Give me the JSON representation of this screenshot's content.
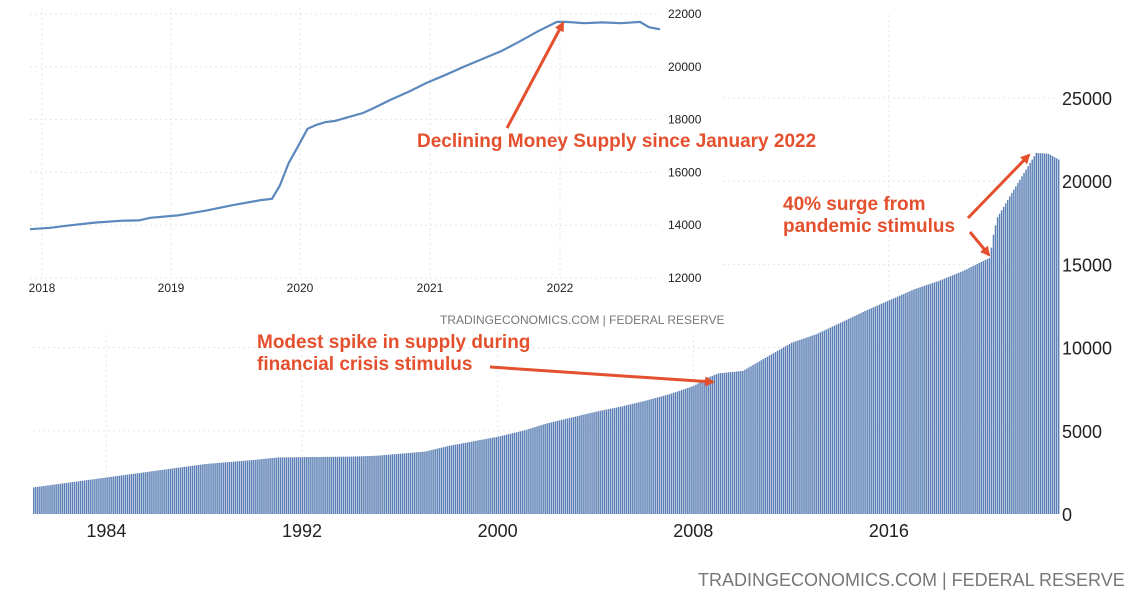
{
  "chart_data": [
    {
      "type": "bar",
      "color": "#5b7fb4",
      "x_start": 1981.0,
      "x_end": 2022.917,
      "step_years": 0.08333,
      "xticks": [
        "1984",
        "1992",
        "2000",
        "2008",
        "2016"
      ],
      "xtick_values": [
        1984,
        1992,
        2000,
        2008,
        2016
      ],
      "yticks": [
        "0",
        "5000",
        "10000",
        "15000",
        "20000",
        "25000"
      ],
      "ylim": [
        0,
        25000
      ],
      "anchors": [
        [
          1981,
          1600
        ],
        [
          1983,
          2000
        ],
        [
          1984,
          2200
        ],
        [
          1986,
          2600
        ],
        [
          1988,
          3000
        ],
        [
          1990,
          3250
        ],
        [
          1991,
          3400
        ],
        [
          1994,
          3450
        ],
        [
          1995,
          3500
        ],
        [
          1997,
          3750
        ],
        [
          1998,
          4100
        ],
        [
          2000,
          4650
        ],
        [
          2001,
          5000
        ],
        [
          2002,
          5450
        ],
        [
          2003,
          5800
        ],
        [
          2004,
          6150
        ],
        [
          2005,
          6450
        ],
        [
          2006,
          6800
        ],
        [
          2007,
          7200
        ],
        [
          2008,
          7700
        ],
        [
          2008.5,
          8150
        ],
        [
          2009,
          8450
        ],
        [
          2010,
          8600
        ],
        [
          2011,
          9450
        ],
        [
          2012,
          10300
        ],
        [
          2013,
          10800
        ],
        [
          2014,
          11500
        ],
        [
          2015,
          12200
        ],
        [
          2016,
          12850
        ],
        [
          2017,
          13500
        ],
        [
          2018,
          14000
        ],
        [
          2019,
          14600
        ],
        [
          2020.1,
          15400
        ],
        [
          2020.25,
          16800
        ],
        [
          2020.4,
          17800
        ],
        [
          2020.6,
          18300
        ],
        [
          2021.0,
          19300
        ],
        [
          2021.5,
          20500
        ],
        [
          2022.0,
          21700
        ],
        [
          2022.5,
          21650
        ],
        [
          2022.917,
          21300
        ]
      ],
      "source": "TRADINGECONOMICS.COM  |  FEDERAL RESERVE"
    },
    {
      "type": "line",
      "color": "#5b88bd",
      "x_start": 2017.917,
      "x_end": 2022.917,
      "xticks": [
        "2018",
        "2019",
        "2020",
        "2021",
        "2022"
      ],
      "xtick_values": [
        2018,
        2019,
        2020,
        2021,
        2022
      ],
      "yticks": [
        "12000",
        "14000",
        "16000",
        "18000",
        "20000",
        "22000"
      ],
      "ylim": [
        12000,
        22000
      ],
      "points": [
        [
          2017.917,
          13850
        ],
        [
          2018.1,
          13900
        ],
        [
          2018.25,
          13980
        ],
        [
          2018.5,
          14100
        ],
        [
          2018.75,
          14170
        ],
        [
          2018.9,
          14180
        ],
        [
          2019.0,
          14280
        ],
        [
          2019.25,
          14370
        ],
        [
          2019.5,
          14550
        ],
        [
          2019.75,
          14760
        ],
        [
          2020.0,
          14950
        ],
        [
          2020.1,
          15000
        ],
        [
          2020.17,
          15500
        ],
        [
          2020.25,
          16350
        ],
        [
          2020.33,
          16950
        ],
        [
          2020.42,
          17650
        ],
        [
          2020.5,
          17800
        ],
        [
          2020.58,
          17900
        ],
        [
          2020.67,
          17950
        ],
        [
          2020.75,
          18050
        ],
        [
          2020.92,
          18250
        ],
        [
          2021.0,
          18400
        ],
        [
          2021.17,
          18750
        ],
        [
          2021.33,
          19050
        ],
        [
          2021.5,
          19400
        ],
        [
          2021.67,
          19700
        ],
        [
          2021.83,
          20000
        ],
        [
          2022.0,
          20300
        ],
        [
          2022.17,
          20600
        ],
        [
          2022.33,
          20950
        ],
        [
          2022.5,
          21350
        ],
        [
          2022.67,
          21700
        ],
        [
          2022.75,
          21700
        ],
        [
          2022.92,
          21650
        ],
        [
          2023.08,
          21680
        ],
        [
          2023.25,
          21650
        ],
        [
          2023.42,
          21700
        ],
        [
          2023.5,
          21500
        ],
        [
          2023.6,
          21420
        ]
      ],
      "source": "TRADINGECONOMICS.COM  |  FEDERAL RESERVE"
    }
  ],
  "annotations": {
    "declining": "Declining Money Supply since January 2022",
    "surge": "40% surge from\npandemic stimulus",
    "spike": "Modest spike in supply during\nfinancial crisis stimulus"
  },
  "colors": {
    "annotation": "#e4502e",
    "source_text": "#777777",
    "grid": "#e6e6e6"
  }
}
